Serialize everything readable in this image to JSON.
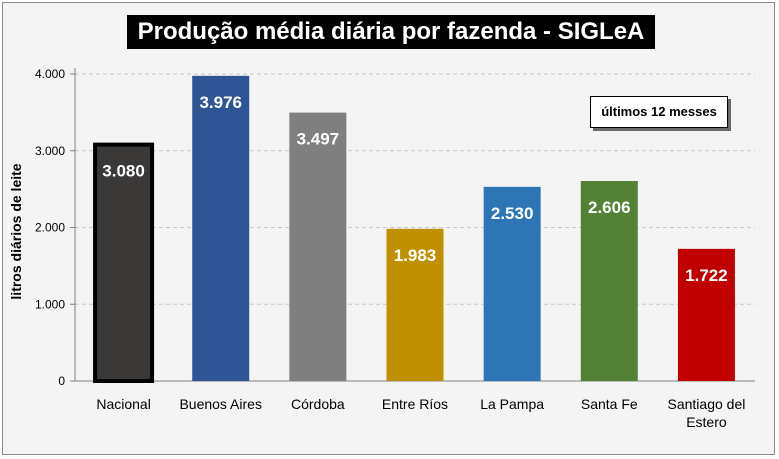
{
  "chart_data": {
    "type": "bar",
    "title": "Produção média diária por fazenda - SIGLeA",
    "annotation": "últimos 12 messes",
    "xlabel": "",
    "ylabel": "litros diários de leite",
    "ylim": [
      0,
      4000
    ],
    "yticks": [
      0,
      1000,
      2000,
      3000,
      4000
    ],
    "ytick_labels": [
      "0",
      "1.000",
      "2.000",
      "3.000",
      "4.000"
    ],
    "grid": true,
    "categories": [
      {
        "label_lines": [
          "Nacional"
        ]
      },
      {
        "label_lines": [
          "Buenos Aires"
        ]
      },
      {
        "label_lines": [
          "Córdoba"
        ]
      },
      {
        "label_lines": [
          "Entre Ríos"
        ]
      },
      {
        "label_lines": [
          "La Pampa"
        ]
      },
      {
        "label_lines": [
          "Santa Fe"
        ]
      },
      {
        "label_lines": [
          "Santiago del",
          "Estero"
        ]
      }
    ],
    "values": [
      3080,
      3976,
      3497,
      1983,
      2530,
      2606,
      1722
    ],
    "value_labels": [
      "3.080",
      "3.976",
      "3.497",
      "1.983",
      "2.530",
      "2.606",
      "1.722"
    ],
    "colors": [
      "#3b3838",
      "#2f5597",
      "#7f7f7f",
      "#bf9000",
      "#2e75b6",
      "#538135",
      "#c00000"
    ]
  }
}
